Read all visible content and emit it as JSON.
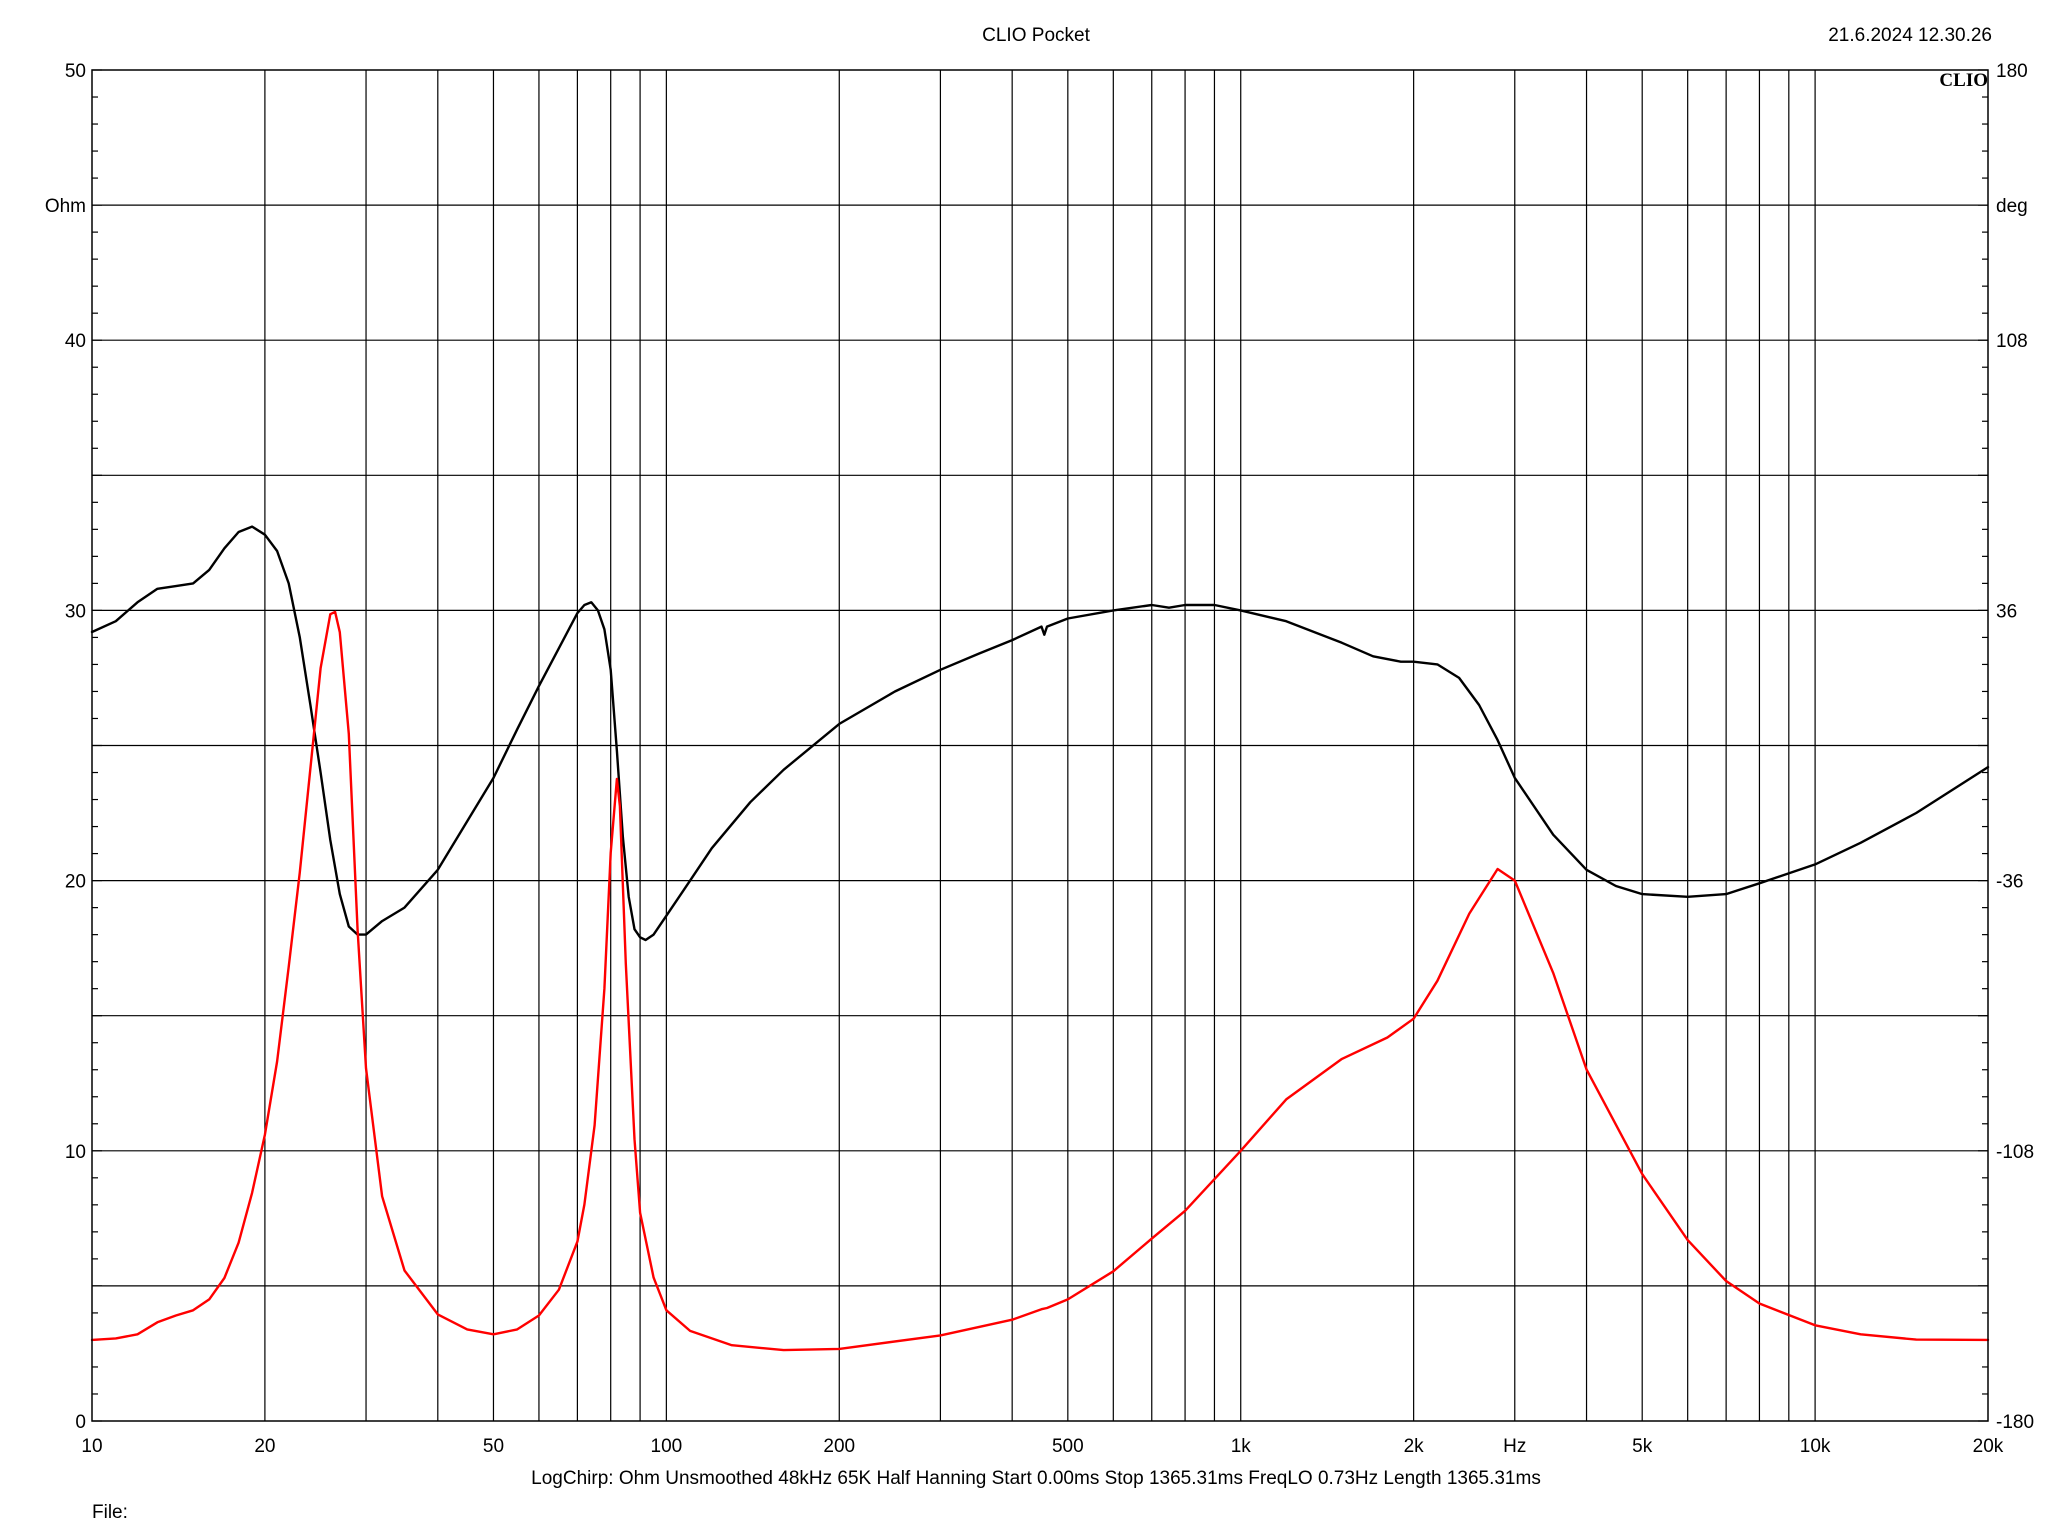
{
  "header": {
    "title": "CLIO Pocket",
    "timestamp": "21.6.2024 12.30.26",
    "logo": "CLIO"
  },
  "footer": {
    "settings": "LogChirp:  Ohm   Unsmoothed   48kHz   65K   Half Hanning   Start 0.00ms    Stop 1365.31ms    FreqLO 0.73Hz    Length 1365.31ms",
    "file_label": "File:"
  },
  "colors": {
    "background": "#ffffff",
    "grid": "#000000",
    "magnitude": "#000000",
    "phase": "#ff0000"
  },
  "chart_data": {
    "type": "line",
    "title": "CLIO Pocket",
    "x_scale": "log",
    "xlim": [
      10,
      20000
    ],
    "x_ticks": [
      {
        "value": 10,
        "label": "10"
      },
      {
        "value": 20,
        "label": "20"
      },
      {
        "value": 50,
        "label": "50"
      },
      {
        "value": 100,
        "label": "100"
      },
      {
        "value": 200,
        "label": "200"
      },
      {
        "value": 500,
        "label": "500"
      },
      {
        "value": 1000,
        "label": "1k"
      },
      {
        "value": 2000,
        "label": "2k"
      },
      {
        "value": 5000,
        "label": "5k"
      },
      {
        "value": 10000,
        "label": "10k"
      },
      {
        "value": 20000,
        "label": "20k"
      }
    ],
    "x_unit_label": "Hz",
    "x_unit_value": 3000,
    "x_minor_gridlines": [
      30,
      40,
      60,
      70,
      80,
      90,
      300,
      400,
      600,
      700,
      800,
      900,
      3000,
      4000,
      6000,
      7000,
      8000,
      9000
    ],
    "y_left": {
      "label": "Ohm",
      "label_value": 45,
      "ylim": [
        0,
        50
      ],
      "ticks": [
        0,
        10,
        20,
        30,
        40,
        50
      ],
      "gridlines_every": 5
    },
    "y_right": {
      "label": "deg",
      "label_value": 144,
      "ylim": [
        -180,
        180
      ],
      "ticks": [
        -180,
        -108,
        -36,
        36,
        108,
        180
      ]
    },
    "grid": true,
    "series": [
      {
        "axis": "left",
        "color": "#000000",
        "points": [
          [
            10,
            29.2
          ],
          [
            11,
            29.6
          ],
          [
            12,
            30.3
          ],
          [
            13,
            30.8
          ],
          [
            14,
            30.9
          ],
          [
            15,
            31.0
          ],
          [
            16,
            31.5
          ],
          [
            17,
            32.3
          ],
          [
            18,
            32.9
          ],
          [
            19,
            33.1
          ],
          [
            20,
            32.8
          ],
          [
            21,
            32.2
          ],
          [
            22,
            31.0
          ],
          [
            23,
            29.0
          ],
          [
            24,
            26.5
          ],
          [
            25,
            24.0
          ],
          [
            26,
            21.5
          ],
          [
            27,
            19.5
          ],
          [
            28,
            18.3
          ],
          [
            29,
            18.0
          ],
          [
            30,
            18.0
          ],
          [
            32,
            18.5
          ],
          [
            35,
            19.0
          ],
          [
            40,
            20.4
          ],
          [
            45,
            22.2
          ],
          [
            50,
            23.8
          ],
          [
            55,
            25.6
          ],
          [
            60,
            27.2
          ],
          [
            65,
            28.6
          ],
          [
            70,
            29.9
          ],
          [
            72,
            30.2
          ],
          [
            74,
            30.3
          ],
          [
            76,
            30.0
          ],
          [
            78,
            29.3
          ],
          [
            80,
            27.8
          ],
          [
            82,
            24.8
          ],
          [
            84,
            21.6
          ],
          [
            86,
            19.4
          ],
          [
            88,
            18.2
          ],
          [
            90,
            17.9
          ],
          [
            92,
            17.8
          ],
          [
            95,
            18.0
          ],
          [
            100,
            18.7
          ],
          [
            110,
            20.0
          ],
          [
            120,
            21.2
          ],
          [
            140,
            22.9
          ],
          [
            160,
            24.1
          ],
          [
            200,
            25.8
          ],
          [
            250,
            27.0
          ],
          [
            300,
            27.8
          ],
          [
            350,
            28.4
          ],
          [
            400,
            28.9
          ],
          [
            450,
            29.4
          ],
          [
            455,
            29.1
          ],
          [
            460,
            29.4
          ],
          [
            500,
            29.7
          ],
          [
            600,
            30.0
          ],
          [
            700,
            30.2
          ],
          [
            750,
            30.1
          ],
          [
            800,
            30.2
          ],
          [
            900,
            30.2
          ],
          [
            1000,
            30.0
          ],
          [
            1200,
            29.6
          ],
          [
            1500,
            28.8
          ],
          [
            1700,
            28.3
          ],
          [
            1900,
            28.1
          ],
          [
            2000,
            28.1
          ],
          [
            2200,
            28.0
          ],
          [
            2400,
            27.5
          ],
          [
            2600,
            26.5
          ],
          [
            2800,
            25.2
          ],
          [
            3000,
            23.8
          ],
          [
            3500,
            21.7
          ],
          [
            4000,
            20.4
          ],
          [
            4500,
            19.8
          ],
          [
            5000,
            19.5
          ],
          [
            6000,
            19.4
          ],
          [
            7000,
            19.5
          ],
          [
            8000,
            19.9
          ],
          [
            10000,
            20.6
          ],
          [
            12000,
            21.4
          ],
          [
            15000,
            22.5
          ],
          [
            20000,
            24.2
          ]
        ]
      },
      {
        "axis": "right",
        "color": "#ff0000",
        "points": [
          [
            10,
            -158.4
          ],
          [
            11,
            -158.0
          ],
          [
            12,
            -156.9
          ],
          [
            13,
            -153.7
          ],
          [
            14,
            -151.9
          ],
          [
            15,
            -150.5
          ],
          [
            16,
            -147.6
          ],
          [
            17,
            -141.9
          ],
          [
            18,
            -132.5
          ],
          [
            19,
            -119.2
          ],
          [
            20,
            -103.7
          ],
          [
            21,
            -84.2
          ],
          [
            22,
            -59.0
          ],
          [
            23,
            -33.8
          ],
          [
            24,
            -6.1
          ],
          [
            25,
            20.6
          ],
          [
            26,
            35.0
          ],
          [
            26.5,
            35.6
          ],
          [
            27,
            30.2
          ],
          [
            28,
            3.1
          ],
          [
            29,
            -49.2
          ],
          [
            30,
            -86.0
          ],
          [
            32,
            -120.1
          ],
          [
            35,
            -139.9
          ],
          [
            40,
            -151.6
          ],
          [
            45,
            -155.6
          ],
          [
            50,
            -156.9
          ],
          [
            55,
            -155.6
          ],
          [
            60,
            -151.9
          ],
          [
            65,
            -145.0
          ],
          [
            70,
            -132.2
          ],
          [
            72,
            -122.3
          ],
          [
            75,
            -101.2
          ],
          [
            78,
            -64.8
          ],
          [
            80,
            -28.6
          ],
          [
            82,
            -8.9
          ],
          [
            83,
            -16.2
          ],
          [
            85,
            -58.1
          ],
          [
            88,
            -104.9
          ],
          [
            90,
            -124.5
          ],
          [
            95,
            -141.8
          ],
          [
            100,
            -150.5
          ],
          [
            110,
            -156.0
          ],
          [
            130,
            -159.8
          ],
          [
            160,
            -161.1
          ],
          [
            200,
            -160.8
          ],
          [
            300,
            -157.2
          ],
          [
            400,
            -153.0
          ],
          [
            450,
            -150.2
          ],
          [
            460,
            -149.9
          ],
          [
            500,
            -147.6
          ],
          [
            600,
            -140.1
          ],
          [
            700,
            -131.4
          ],
          [
            800,
            -124.0
          ],
          [
            1000,
            -108.0
          ],
          [
            1200,
            -94.3
          ],
          [
            1500,
            -83.5
          ],
          [
            1800,
            -77.8
          ],
          [
            2000,
            -72.8
          ],
          [
            2200,
            -62.7
          ],
          [
            2500,
            -44.8
          ],
          [
            2800,
            -32.9
          ],
          [
            3000,
            -36.0
          ],
          [
            3500,
            -60.6
          ],
          [
            4000,
            -86.3
          ],
          [
            5000,
            -114.2
          ],
          [
            6000,
            -131.8
          ],
          [
            7000,
            -142.7
          ],
          [
            8000,
            -148.7
          ],
          [
            10000,
            -154.5
          ],
          [
            12000,
            -156.9
          ],
          [
            15000,
            -158.3
          ],
          [
            20000,
            -158.4
          ]
        ]
      }
    ]
  }
}
